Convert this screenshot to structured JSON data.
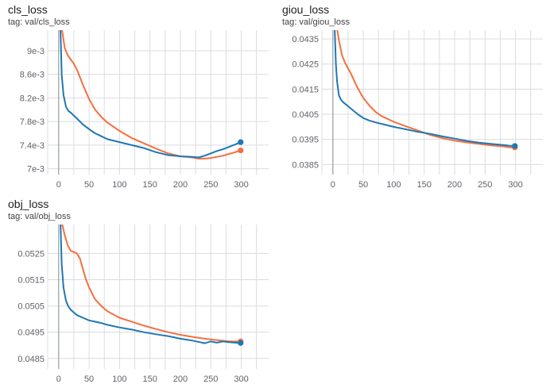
{
  "colors": {
    "series_orange": "#f4703f",
    "series_blue": "#1f77b4",
    "grid": "#dadce0",
    "axis": "#9e9e9e",
    "text": "#5f6368"
  },
  "chart_data": [
    {
      "type": "line",
      "title": "cls_loss",
      "tag": "tag: val/cls_loss",
      "xlim": [
        -18,
        345
      ],
      "ylim": [
        0.0069,
        0.00935
      ],
      "xticks": [
        0,
        50,
        100,
        150,
        200,
        250,
        300
      ],
      "xtick_labels": [
        "0",
        "50",
        "100",
        "150",
        "200",
        "250",
        "300"
      ],
      "yticks": [
        0.007,
        0.0074,
        0.0078,
        0.0082,
        0.0086,
        0.009
      ],
      "ytick_labels": [
        "7e-3",
        "7.4e-3",
        "7.8e-3",
        "8.2e-3",
        "8.6e-3",
        "9e-3"
      ],
      "series": [
        {
          "name": "orange",
          "color": "#f4703f",
          "x": [
            5,
            10,
            15,
            20,
            25,
            30,
            35,
            40,
            50,
            60,
            70,
            80,
            100,
            120,
            140,
            160,
            180,
            200,
            220,
            230,
            240,
            250,
            260,
            270,
            280,
            290,
            299
          ],
          "y": [
            0.0094,
            0.00905,
            0.00892,
            0.00885,
            0.00878,
            0.00868,
            0.00855,
            0.00842,
            0.00818,
            0.008,
            0.00788,
            0.00778,
            0.00764,
            0.00752,
            0.00743,
            0.00734,
            0.00726,
            0.00721,
            0.00719,
            0.00717,
            0.00717,
            0.00718,
            0.0072,
            0.00722,
            0.00725,
            0.00728,
            0.00731
          ]
        },
        {
          "name": "blue",
          "color": "#1f77b4",
          "x": [
            3,
            5,
            8,
            12,
            16,
            20,
            25,
            30,
            40,
            50,
            60,
            70,
            80,
            100,
            120,
            140,
            160,
            180,
            200,
            220,
            230,
            240,
            250,
            260,
            270,
            280,
            290,
            299
          ],
          "y": [
            0.00935,
            0.0086,
            0.00825,
            0.00805,
            0.00798,
            0.00795,
            0.0079,
            0.00785,
            0.00775,
            0.00767,
            0.0076,
            0.00755,
            0.0075,
            0.00745,
            0.0074,
            0.00735,
            0.00728,
            0.00723,
            0.00721,
            0.0072,
            0.00719,
            0.00722,
            0.00726,
            0.0073,
            0.00733,
            0.00737,
            0.00741,
            0.00745
          ]
        }
      ]
    },
    {
      "type": "line",
      "title": "giou_loss",
      "tag": "tag: val/giou_loss",
      "xlim": [
        -18,
        345
      ],
      "ylim": [
        0.0381,
        0.04385
      ],
      "xticks": [
        0,
        50,
        100,
        150,
        200,
        250,
        300
      ],
      "xtick_labels": [
        "0",
        "50",
        "100",
        "150",
        "200",
        "250",
        "300"
      ],
      "yticks": [
        0.0385,
        0.0395,
        0.0405,
        0.0415,
        0.0425,
        0.0435
      ],
      "ytick_labels": [
        "0.0385",
        "0.0395",
        "0.0405",
        "0.0415",
        "0.0425",
        "0.0435"
      ],
      "series": [
        {
          "name": "orange",
          "color": "#f4703f",
          "x": [
            7,
            10,
            15,
            20,
            30,
            40,
            50,
            60,
            70,
            80,
            100,
            120,
            140,
            160,
            180,
            200,
            220,
            240,
            260,
            280,
            290,
            299
          ],
          "y": [
            0.0439,
            0.04345,
            0.04285,
            0.04255,
            0.0421,
            0.04158,
            0.04115,
            0.04085,
            0.0406,
            0.04043,
            0.0402,
            0.04002,
            0.03985,
            0.03968,
            0.03955,
            0.03945,
            0.03938,
            0.03932,
            0.03926,
            0.03922,
            0.03918,
            0.03918
          ]
        },
        {
          "name": "blue",
          "color": "#1f77b4",
          "x": [
            3,
            5,
            7,
            10,
            13,
            16,
            20,
            25,
            30,
            40,
            50,
            60,
            70,
            80,
            100,
            120,
            140,
            160,
            180,
            200,
            220,
            240,
            260,
            280,
            290,
            299
          ],
          "y": [
            0.0439,
            0.0425,
            0.0418,
            0.04125,
            0.0411,
            0.041,
            0.04092,
            0.04082,
            0.04072,
            0.04052,
            0.04035,
            0.04025,
            0.04018,
            0.04012,
            0.04,
            0.0399,
            0.0398,
            0.03972,
            0.03962,
            0.03953,
            0.03944,
            0.03937,
            0.03932,
            0.03928,
            0.03925,
            0.03924
          ]
        }
      ]
    },
    {
      "type": "line",
      "title": "obj_loss",
      "tag": "tag: val/obj_loss",
      "xlim": [
        -18,
        345
      ],
      "ylim": [
        0.0481,
        0.0536
      ],
      "xticks": [
        0,
        50,
        100,
        150,
        200,
        250,
        300
      ],
      "xtick_labels": [
        "0",
        "50",
        "100",
        "150",
        "200",
        "250",
        "300"
      ],
      "yticks": [
        0.0485,
        0.0495,
        0.0505,
        0.0515,
        0.0525
      ],
      "ytick_labels": [
        "0.0485",
        "0.0495",
        "0.0505",
        "0.0515",
        "0.0525"
      ],
      "series": [
        {
          "name": "orange",
          "color": "#f4703f",
          "x": [
            5,
            10,
            15,
            20,
            25,
            30,
            35,
            40,
            45,
            50,
            60,
            70,
            80,
            100,
            120,
            140,
            160,
            180,
            200,
            220,
            240,
            260,
            280,
            290,
            299
          ],
          "y": [
            0.0537,
            0.0532,
            0.0528,
            0.0526,
            0.05255,
            0.0525,
            0.0523,
            0.0519,
            0.0515,
            0.0512,
            0.05075,
            0.0505,
            0.0503,
            0.05005,
            0.0499,
            0.04975,
            0.04962,
            0.0495,
            0.0494,
            0.04932,
            0.04925,
            0.0492,
            0.04915,
            0.04915,
            0.04915
          ]
        },
        {
          "name": "blue",
          "color": "#1f77b4",
          "x": [
            3,
            5,
            8,
            12,
            16,
            20,
            25,
            30,
            40,
            50,
            60,
            70,
            80,
            100,
            120,
            140,
            160,
            180,
            200,
            220,
            240,
            250,
            260,
            270,
            280,
            290,
            299
          ],
          "y": [
            0.0537,
            0.0521,
            0.0512,
            0.0507,
            0.05048,
            0.05035,
            0.05025,
            0.05015,
            0.05005,
            0.04995,
            0.0499,
            0.04985,
            0.04978,
            0.04968,
            0.0496,
            0.0495,
            0.04942,
            0.04935,
            0.04925,
            0.04918,
            0.04908,
            0.04915,
            0.0491,
            0.04915,
            0.04912,
            0.0491,
            0.04909
          ]
        }
      ]
    }
  ]
}
